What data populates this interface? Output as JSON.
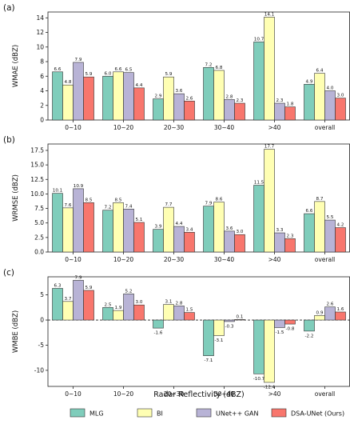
{
  "xlabel": "Radar Reflectivity (dBZ)",
  "categories": [
    "0~10",
    "10~20",
    "20~30",
    "30~40",
    ">40",
    "overall"
  ],
  "legend": [
    {
      "name": "MLG",
      "color": "#7fcdbb"
    },
    {
      "name": "BI",
      "color": "#ffffb3"
    },
    {
      "name": "UNet++ GAN",
      "color": "#b8b3d6"
    },
    {
      "name": "DSA-UNet (Ours)",
      "color": "#f8766d"
    }
  ],
  "chart_data": [
    {
      "type": "bar",
      "panel_label": "(a)",
      "ylabel": "WMAE (dBZ)",
      "ylim": [
        0,
        14.8
      ],
      "yticks": [
        0,
        2,
        4,
        6,
        8,
        10,
        12,
        14
      ],
      "ytick_labels": [
        "0",
        "2",
        "4",
        "6",
        "8",
        "10",
        "12",
        "14"
      ],
      "series": [
        {
          "name": "MLG",
          "values": [
            6.6,
            6.0,
            2.9,
            7.2,
            10.7,
            4.9
          ],
          "labels": [
            "6.6",
            "6.0",
            "2.9",
            "7.2",
            "10.7",
            "4.9"
          ]
        },
        {
          "name": "BI",
          "values": [
            4.8,
            6.6,
            5.9,
            6.8,
            14.1,
            6.4
          ],
          "labels": [
            "4.8",
            "6.6",
            "5.9",
            "6.8",
            "14.1",
            "6.4"
          ]
        },
        {
          "name": "UNet++ GAN",
          "values": [
            7.9,
            6.5,
            3.6,
            2.8,
            2.3,
            4.0
          ],
          "labels": [
            "7.9",
            "6.5",
            "3.6",
            "2.8",
            "2.3",
            "4.0"
          ]
        },
        {
          "name": "DSA-UNet (Ours)",
          "values": [
            5.9,
            4.4,
            2.6,
            2.3,
            1.8,
            3.0
          ],
          "labels": [
            "5.9",
            "4.4",
            "2.6",
            "2.3",
            "1.8",
            "3.0"
          ]
        }
      ]
    },
    {
      "type": "bar",
      "panel_label": "(b)",
      "ylabel": "WRMSE (dBZ)",
      "ylim": [
        0,
        18.6
      ],
      "yticks": [
        0,
        2.5,
        5,
        7.5,
        10,
        12.5,
        15,
        17.5
      ],
      "ytick_labels": [
        "0.0",
        "2.5",
        "5.0",
        "7.5",
        "10.0",
        "12.5",
        "15.0",
        "17.5"
      ],
      "series": [
        {
          "name": "MLG",
          "values": [
            10.1,
            7.2,
            3.9,
            7.9,
            11.5,
            6.6
          ],
          "labels": [
            "10.1",
            "7.2",
            "3.9",
            "7.9",
            "11.5",
            "6.6"
          ]
        },
        {
          "name": "BI",
          "values": [
            7.6,
            8.5,
            7.7,
            8.6,
            17.7,
            8.7
          ],
          "labels": [
            "7.6",
            "8.5",
            "7.7",
            "8.6",
            "17.7",
            "8.7"
          ]
        },
        {
          "name": "UNet++ GAN",
          "values": [
            10.9,
            7.4,
            4.4,
            3.6,
            3.3,
            5.5
          ],
          "labels": [
            "10.9",
            "7.4",
            "4.4",
            "3.6",
            "3.3",
            "5.5"
          ]
        },
        {
          "name": "DSA-UNet (Ours)",
          "values": [
            8.5,
            5.1,
            3.4,
            3.0,
            2.3,
            4.2
          ],
          "labels": [
            "8.5",
            "5.1",
            "3.4",
            "3.0",
            "2.3",
            "4.2"
          ]
        }
      ]
    },
    {
      "type": "bar",
      "panel_label": "(c)",
      "ylabel": "WMBE (dBZ)",
      "ylim": [
        -13.2,
        8.6
      ],
      "yticks": [
        -10,
        -5,
        0,
        5
      ],
      "ytick_labels": [
        "-10",
        "-5",
        "0",
        "5"
      ],
      "zero_line": "dashed",
      "series": [
        {
          "name": "MLG",
          "values": [
            6.3,
            2.5,
            -1.6,
            -7.1,
            -10.7,
            -2.2
          ],
          "labels": [
            "6.3",
            "2.5",
            "-1.6",
            "-7.1",
            "-10.7",
            "-2.2"
          ]
        },
        {
          "name": "BI",
          "values": [
            3.7,
            1.9,
            3.1,
            -3.1,
            -12.4,
            0.9
          ],
          "labels": [
            "3.7",
            "1.9",
            "3.1",
            "-3.1",
            "-12.4",
            "0.9"
          ]
        },
        {
          "name": "UNet++ GAN",
          "values": [
            7.9,
            5.2,
            2.8,
            -0.3,
            -1.5,
            2.6
          ],
          "labels": [
            "7.9",
            "5.2",
            "2.8",
            "-0.3",
            "-1.5",
            "2.6"
          ]
        },
        {
          "name": "DSA-UNet (Ours)",
          "values": [
            5.9,
            3.0,
            1.5,
            0.1,
            -0.8,
            1.6
          ],
          "labels": [
            "5.9",
            "3.0",
            "1.5",
            "0.1",
            "-0.8",
            "1.6"
          ]
        }
      ]
    }
  ]
}
